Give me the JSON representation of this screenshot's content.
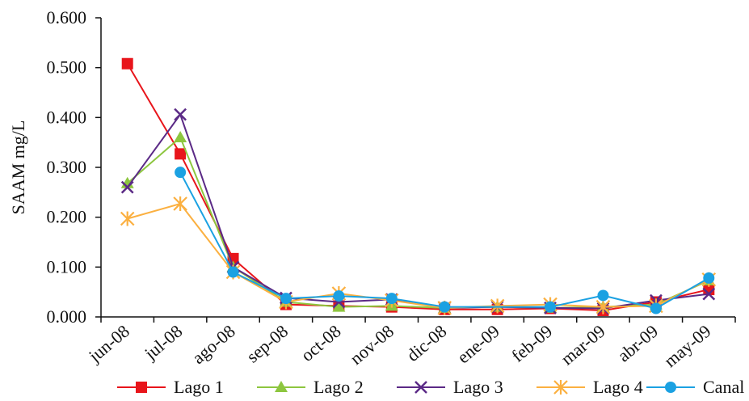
{
  "chart_data": {
    "type": "line",
    "title": "",
    "xlabel": "",
    "ylabel": "SAAM mg/L",
    "ylim": [
      0,
      0.6
    ],
    "yticks": [
      "0.000",
      "0.100",
      "0.200",
      "0.300",
      "0.400",
      "0.500",
      "0.600"
    ],
    "categories": [
      "jun-08",
      "jul-08",
      "ago-08",
      "sep-08",
      "oct-08",
      "nov-08",
      "dic-08",
      "ene-09",
      "feb-09",
      "mar-09",
      "abr-09",
      "may-09"
    ],
    "grid": false,
    "legend_position": "bottom",
    "series": [
      {
        "name": "Lago 1",
        "color": "#e8151b",
        "marker": "square",
        "values": [
          0.508,
          0.327,
          0.117,
          0.025,
          0.022,
          0.02,
          0.015,
          0.015,
          0.017,
          0.013,
          0.03,
          0.055
        ]
      },
      {
        "name": "Lago 2",
        "color": "#8dc63f",
        "marker": "triangle",
        "values": [
          0.268,
          0.36,
          0.1,
          0.03,
          0.02,
          0.022,
          0.018,
          0.02,
          0.018,
          0.02,
          0.025,
          0.073
        ]
      },
      {
        "name": "Lago 3",
        "color": "#5b2a86",
        "marker": "x",
        "values": [
          0.26,
          0.406,
          0.1,
          0.038,
          0.03,
          0.035,
          0.018,
          0.02,
          0.018,
          0.017,
          0.033,
          0.046
        ]
      },
      {
        "name": "Lago 4",
        "color": "#fbb040",
        "marker": "star",
        "values": [
          0.197,
          0.227,
          0.09,
          0.03,
          0.047,
          0.033,
          0.018,
          0.022,
          0.025,
          0.02,
          0.022,
          0.075
        ]
      },
      {
        "name": "Canal",
        "color": "#1ba1e2",
        "marker": "circle",
        "values": [
          null,
          0.29,
          0.09,
          0.037,
          0.042,
          0.037,
          0.02,
          null,
          0.02,
          0.043,
          0.017,
          0.078
        ]
      }
    ]
  }
}
